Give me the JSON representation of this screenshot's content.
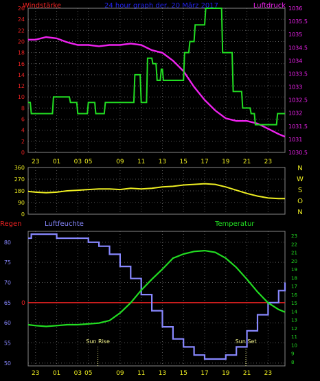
{
  "colors": {
    "background": "#000000",
    "grid": "#5a5a5a",
    "wind": "#22dd22",
    "pressure": "#ee22ee",
    "direction": "#eeee22",
    "humidity": "#8888ff",
    "temperature": "#22dd22",
    "rain": "#ee2222",
    "wind_axis": "#ee2222",
    "pressure_axis": "#ee22ee",
    "dir_axis": "#eeee22",
    "hum_axis": "#8888ff",
    "temp_axis": "#22dd22",
    "title": "#2222ee",
    "time_axis": "#eeee22",
    "sun": "#eeee88"
  },
  "chart_data": [
    {
      "type": "line",
      "title": "24 hour graph der, 20 März 2017",
      "left_label": "Windstärke",
      "right_label": "Luftdruck",
      "x_ticks": [
        "23",
        "01",
        "03",
        "05",
        "09",
        "11",
        "13",
        "15",
        "17",
        "19",
        "21",
        "23"
      ],
      "x_tick_hours": [
        0,
        2,
        4,
        5,
        8,
        10,
        12,
        14,
        16,
        18,
        20,
        22
      ],
      "x_range_hours": [
        -0.7,
        23.6
      ],
      "y_left_ticks": [
        "0",
        "2",
        "4",
        "6",
        "8",
        "10",
        "12",
        "14",
        "16",
        "18",
        "20",
        "22",
        "24",
        "26"
      ],
      "y_left_range": [
        0,
        26
      ],
      "y_right_ticks": [
        "1030.5",
        "1031",
        "1031.5",
        "1032",
        "1032.5",
        "1033",
        "1033.5",
        "1034",
        "1034.5",
        "1035",
        "1035.5",
        "1036"
      ],
      "y_right_range": [
        1030.5,
        1036
      ],
      "series": [
        {
          "name": "Windstärke",
          "axis": "left",
          "step": true,
          "x": [
            -0.7,
            -0.5,
            -0.4,
            1.6,
            1.7,
            3.2,
            3.3,
            3.9,
            4.0,
            4.9,
            5.0,
            5.6,
            5.7,
            6.5,
            6.6,
            8.3,
            8.4,
            9.3,
            9.4,
            9.9,
            10.0,
            10.5,
            10.6,
            11.0,
            11.1,
            11.4,
            11.5,
            11.8,
            11.9,
            12.0,
            12.1,
            14.0,
            14.1,
            14.5,
            14.6,
            15.0,
            15.1,
            16.0,
            16.1,
            17.6,
            17.7,
            18.6,
            18.7,
            19.5,
            19.6,
            20.3,
            20.4,
            20.7,
            20.8,
            22.8,
            22.9,
            23.6
          ],
          "values": [
            9,
            9,
            7,
            7,
            10,
            10,
            9,
            9,
            7,
            7,
            9,
            9,
            7,
            7,
            9,
            9,
            9,
            9,
            14,
            14,
            9,
            9,
            17,
            17,
            16,
            16,
            13,
            13,
            15,
            15,
            13,
            13,
            18,
            18,
            20,
            20,
            23,
            23,
            27,
            27,
            18,
            18,
            11,
            11,
            8,
            8,
            7,
            7,
            5,
            5,
            7,
            7
          ]
        },
        {
          "name": "Luftdruck",
          "axis": "right",
          "step": false,
          "x": [
            -0.7,
            0,
            1,
            2,
            3,
            4,
            5,
            6,
            7,
            8,
            9,
            10,
            11,
            12,
            13,
            14,
            15,
            16,
            17,
            18,
            19,
            20,
            21,
            22,
            23,
            23.6
          ],
          "values": [
            1034.8,
            1034.8,
            1034.9,
            1034.85,
            1034.7,
            1034.6,
            1034.6,
            1034.55,
            1034.6,
            1034.6,
            1034.65,
            1034.6,
            1034.4,
            1034.3,
            1034.0,
            1033.6,
            1033.0,
            1032.5,
            1032.1,
            1031.8,
            1031.7,
            1031.7,
            1031.6,
            1031.4,
            1031.2,
            1031.1
          ]
        }
      ]
    },
    {
      "type": "line",
      "right_label_letters": [
        "N",
        "W",
        "S",
        "O",
        "N"
      ],
      "x_ticks": [
        "23",
        "01",
        "03",
        "05",
        "09",
        "11",
        "13",
        "15",
        "17",
        "19",
        "21",
        "23"
      ],
      "x_tick_hours": [
        0,
        2,
        4,
        5,
        8,
        10,
        12,
        14,
        16,
        18,
        20,
        22
      ],
      "x_range_hours": [
        -0.7,
        23.6
      ],
      "y_ticks": [
        "0",
        "90",
        "180",
        "270",
        "360"
      ],
      "y_range": [
        0,
        360
      ],
      "series": [
        {
          "name": "Windrichtung",
          "x": [
            -0.7,
            0,
            1,
            2,
            3,
            4,
            5,
            6,
            7,
            8,
            9,
            10,
            11,
            12,
            13,
            14,
            15,
            16,
            17,
            18,
            19,
            20,
            21,
            22,
            23,
            23.6
          ],
          "values": [
            175,
            170,
            165,
            170,
            180,
            185,
            190,
            195,
            195,
            190,
            200,
            195,
            200,
            210,
            215,
            225,
            230,
            235,
            230,
            210,
            185,
            160,
            140,
            125,
            120,
            120
          ]
        }
      ]
    },
    {
      "type": "line",
      "left_label": "Regen",
      "mid_label": "Luftfeuchte",
      "right_label": "Temperatur",
      "x_ticks": [
        "23",
        "01",
        "03",
        "05",
        "09",
        "11",
        "13",
        "15",
        "17",
        "19",
        "21",
        "23"
      ],
      "x_tick_hours": [
        0,
        2,
        4,
        5,
        8,
        10,
        12,
        14,
        16,
        18,
        20,
        22
      ],
      "x_range_hours": [
        -0.7,
        23.6
      ],
      "y_left_ticks": [
        "50",
        "55",
        "60",
        "65",
        "70",
        "75",
        "80"
      ],
      "y_left_range": [
        49.3,
        82.7
      ],
      "y_right_ticks": [
        "8",
        "9",
        "10",
        "11",
        "12",
        "13",
        "14",
        "15",
        "16",
        "17",
        "18",
        "19",
        "20",
        "21",
        "22",
        "23"
      ],
      "y_right_range": [
        8,
        23
      ],
      "rain_marker": "0",
      "rain_level": 65,
      "events": [
        {
          "label": "Sun Rise",
          "hour": 5.9
        },
        {
          "label": "Sun Set",
          "hour": 19.9
        }
      ],
      "series": [
        {
          "name": "Luftfeuchte",
          "axis": "left",
          "step": true,
          "x": [
            -0.7,
            -0.4,
            0,
            1,
            2,
            3,
            4,
            5,
            6,
            7,
            8,
            9,
            10,
            11,
            12,
            13,
            14,
            15,
            16,
            17,
            18,
            19,
            20,
            21,
            22,
            23,
            23.6
          ],
          "values": [
            81,
            82,
            82,
            82,
            81,
            81,
            81,
            80,
            79,
            77,
            74,
            71,
            67,
            63,
            59,
            56,
            54,
            52,
            51,
            51,
            52,
            54,
            58,
            62,
            65,
            68,
            70
          ]
        },
        {
          "name": "Temperatur",
          "axis": "right",
          "step": false,
          "x": [
            -0.7,
            0,
            1,
            2,
            3,
            4,
            5,
            6,
            7,
            8,
            9,
            10,
            11,
            12,
            13,
            14,
            15,
            16,
            17,
            18,
            19,
            20,
            21,
            22,
            23,
            23.6
          ],
          "values": [
            12.4,
            12.3,
            12.2,
            12.3,
            12.4,
            12.4,
            12.5,
            12.6,
            12.9,
            13.8,
            15.0,
            16.5,
            17.8,
            19.0,
            20.3,
            20.8,
            21.1,
            21.2,
            21.0,
            20.3,
            19.2,
            17.8,
            16.3,
            15.0,
            14.2,
            13.9
          ]
        }
      ]
    }
  ]
}
